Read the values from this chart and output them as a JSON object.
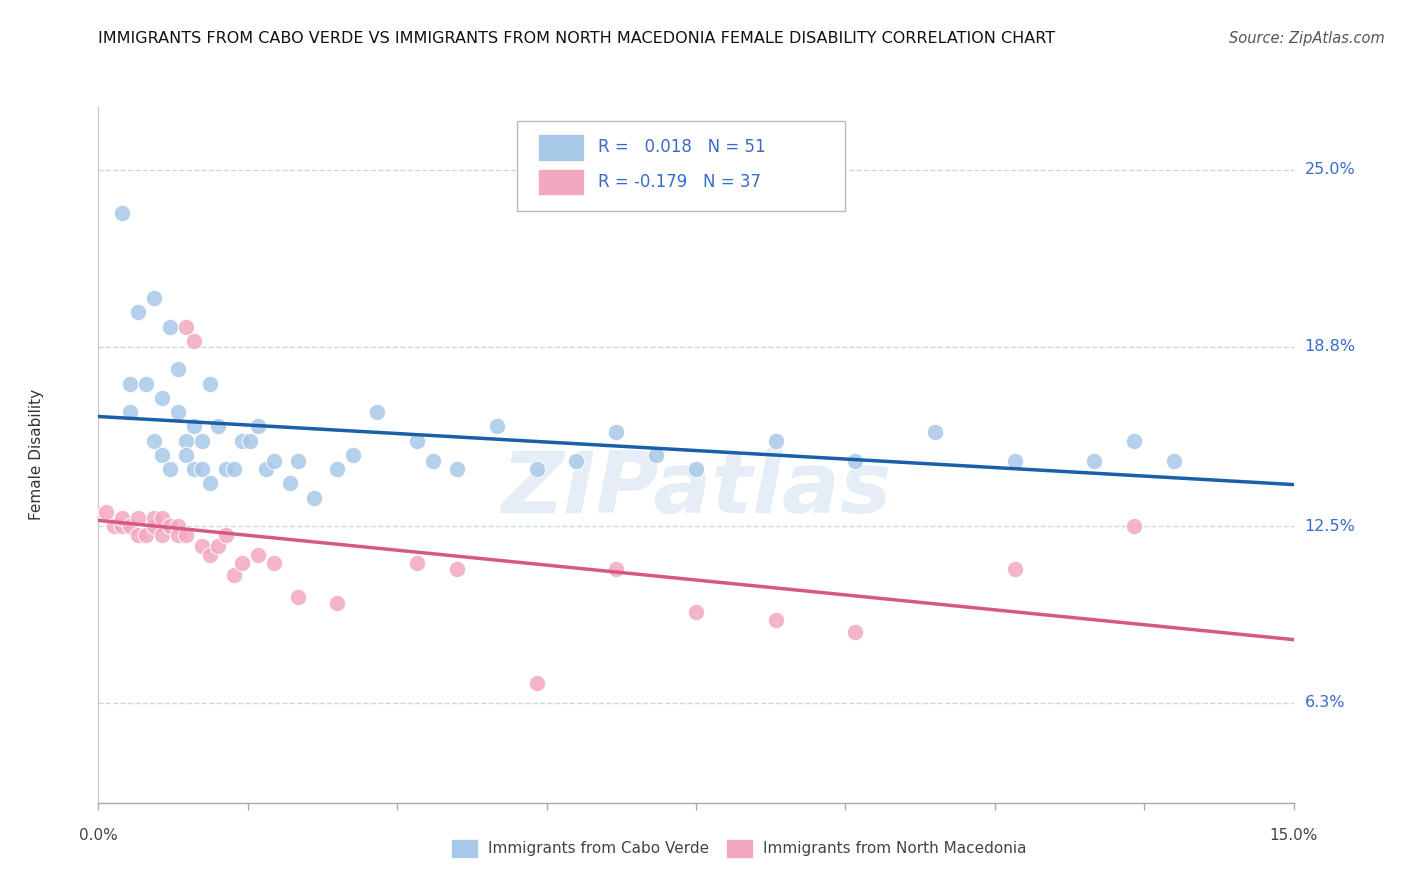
{
  "title": "IMMIGRANTS FROM CABO VERDE VS IMMIGRANTS FROM NORTH MACEDONIA FEMALE DISABILITY CORRELATION CHART",
  "source": "Source: ZipAtlas.com",
  "ylabel": "Female Disability",
  "y_tick_labels": [
    "6.3%",
    "12.5%",
    "18.8%",
    "25.0%"
  ],
  "y_tick_values": [
    0.063,
    0.125,
    0.188,
    0.25
  ],
  "xmin": 0.0,
  "xmax": 0.15,
  "ymin": 0.028,
  "ymax": 0.272,
  "legend1_R": " 0.018",
  "legend1_N": "51",
  "legend2_R": "-0.179",
  "legend2_N": "37",
  "legend_label1": "Immigrants from Cabo Verde",
  "legend_label2": "Immigrants from North Macedonia",
  "blue_color": "#a8c8e8",
  "pink_color": "#f4a8c0",
  "blue_line_color": "#1a5fa8",
  "pink_line_color": "#d45a80",
  "background_color": "#ffffff",
  "grid_color": "#c8d8e8",
  "watermark": "ZIPatlas",
  "cabo_verde_x": [
    0.003,
    0.004,
    0.004,
    0.005,
    0.006,
    0.007,
    0.007,
    0.008,
    0.008,
    0.009,
    0.009,
    0.01,
    0.01,
    0.011,
    0.011,
    0.012,
    0.012,
    0.013,
    0.013,
    0.014,
    0.014,
    0.015,
    0.016,
    0.017,
    0.018,
    0.019,
    0.02,
    0.021,
    0.022,
    0.024,
    0.025,
    0.027,
    0.03,
    0.032,
    0.035,
    0.04,
    0.042,
    0.045,
    0.05,
    0.055,
    0.06,
    0.065,
    0.07,
    0.075,
    0.085,
    0.095,
    0.105,
    0.115,
    0.125,
    0.13,
    0.135
  ],
  "cabo_verde_y": [
    0.235,
    0.175,
    0.165,
    0.2,
    0.175,
    0.155,
    0.205,
    0.15,
    0.17,
    0.145,
    0.195,
    0.165,
    0.18,
    0.155,
    0.15,
    0.16,
    0.145,
    0.145,
    0.155,
    0.175,
    0.14,
    0.16,
    0.145,
    0.145,
    0.155,
    0.155,
    0.16,
    0.145,
    0.148,
    0.14,
    0.148,
    0.135,
    0.145,
    0.15,
    0.165,
    0.155,
    0.148,
    0.145,
    0.16,
    0.145,
    0.148,
    0.158,
    0.15,
    0.145,
    0.155,
    0.148,
    0.158,
    0.148,
    0.148,
    0.155,
    0.148
  ],
  "north_mac_x": [
    0.001,
    0.002,
    0.003,
    0.003,
    0.004,
    0.005,
    0.005,
    0.006,
    0.007,
    0.007,
    0.008,
    0.008,
    0.009,
    0.01,
    0.01,
    0.011,
    0.011,
    0.012,
    0.013,
    0.014,
    0.015,
    0.016,
    0.017,
    0.018,
    0.02,
    0.022,
    0.025,
    0.03,
    0.04,
    0.045,
    0.055,
    0.065,
    0.075,
    0.085,
    0.095,
    0.115,
    0.13
  ],
  "north_mac_y": [
    0.13,
    0.125,
    0.125,
    0.128,
    0.125,
    0.122,
    0.128,
    0.122,
    0.125,
    0.128,
    0.128,
    0.122,
    0.125,
    0.125,
    0.122,
    0.122,
    0.195,
    0.19,
    0.118,
    0.115,
    0.118,
    0.122,
    0.108,
    0.112,
    0.115,
    0.112,
    0.1,
    0.098,
    0.112,
    0.11,
    0.07,
    0.11,
    0.095,
    0.092,
    0.088,
    0.11,
    0.125
  ]
}
